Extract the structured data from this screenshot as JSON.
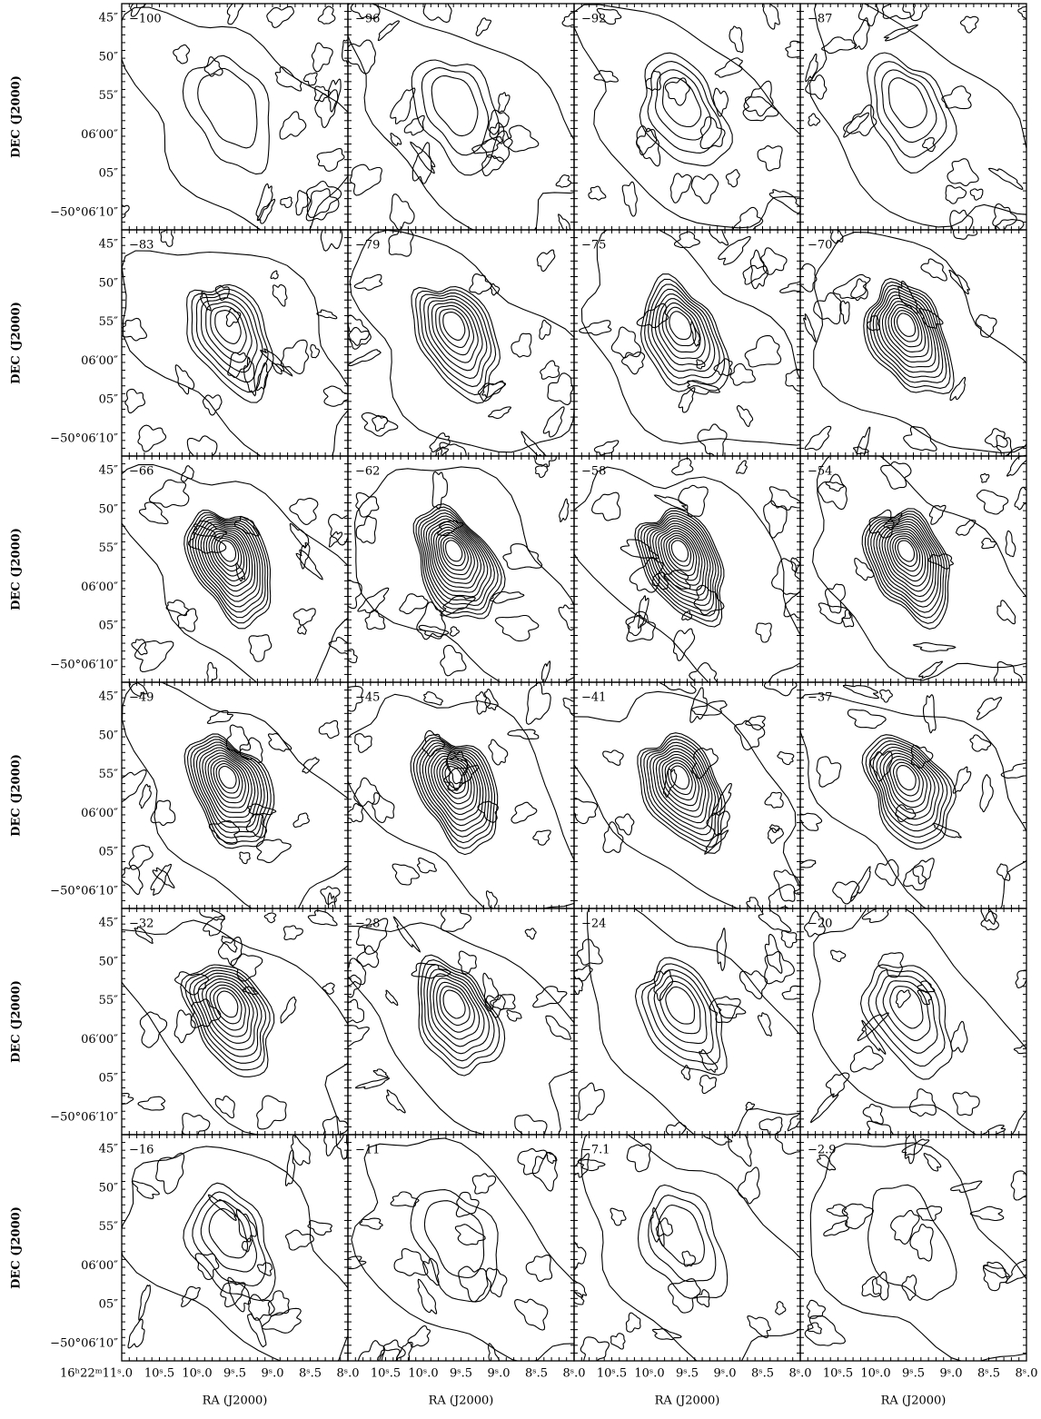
{
  "y_axis_label": "DEC (J2000)",
  "x_axis_label": "RA (J2000)",
  "y_tick_labels": [
    "45″",
    "50″",
    "55″",
    "06′00″",
    "05″",
    "−50°06′10″"
  ],
  "x_tick_labels_first": [
    "16ʰ22ᵐ11ˢ.0",
    "10ˢ.5",
    "10ˢ.0",
    "9ˢ.5",
    "9ˢ.0",
    "8ˢ.5",
    "8ˢ.0"
  ],
  "x_tick_labels": [
    "10ˢ.5",
    "10ˢ.0",
    "9ˢ.5",
    "9ˢ.0",
    "8ˢ.5",
    "8ˢ.0"
  ],
  "panels": [
    "−100",
    "−96",
    "−92",
    "−87",
    "−83",
    "−79",
    "−75",
    "−70",
    "−66",
    "−62",
    "−58",
    "−54",
    "−49",
    "−45",
    "−41",
    "−37",
    "−32",
    "−28",
    "−24",
    "−20",
    "−16",
    "−11",
    "−7.1",
    "−2.9"
  ]
}
